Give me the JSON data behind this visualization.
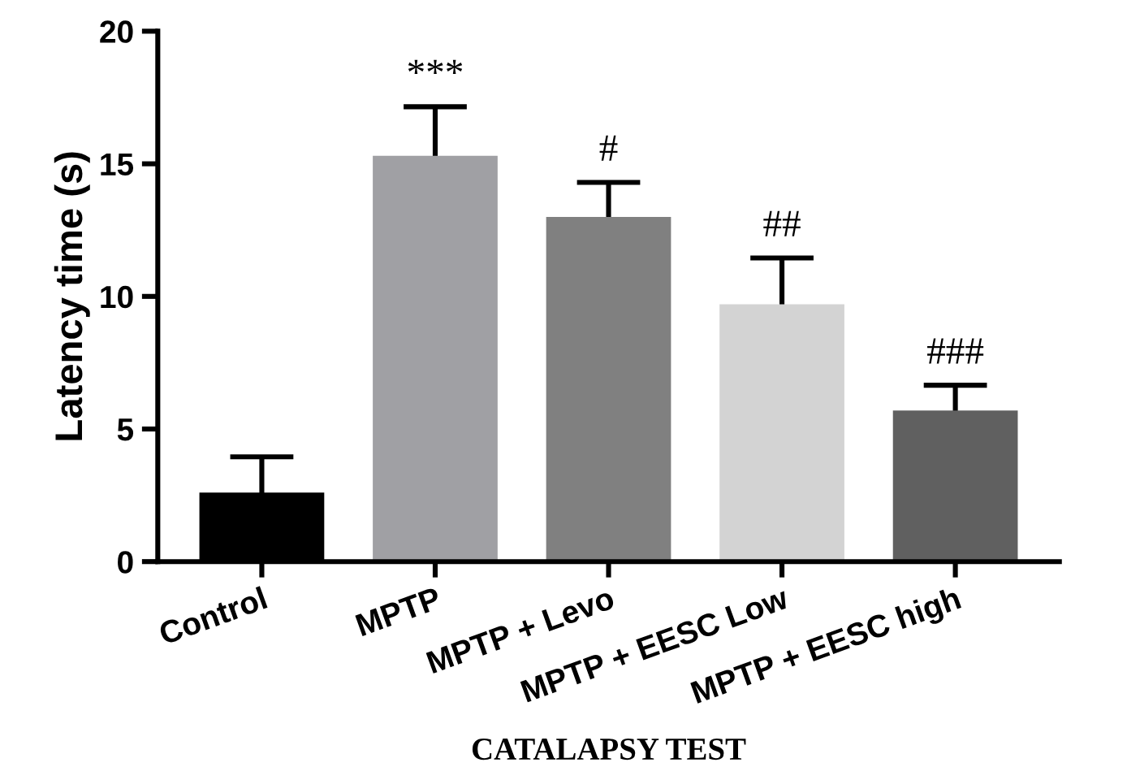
{
  "chart_data": {
    "type": "bar",
    "categories": [
      "Control",
      "MPTP",
      "MPTP + Levo",
      "MPTP + EESC Low",
      "MPTP + EESC high"
    ],
    "values": [
      2.6,
      15.3,
      13.0,
      9.7,
      5.7
    ],
    "errors": [
      1.35,
      1.85,
      1.3,
      1.75,
      0.95
    ],
    "colors": [
      "#000000",
      "#a0a0a4",
      "#808080",
      "#d3d3d3",
      "#606060"
    ],
    "ylabel": "Latency time (s)",
    "xlabel": "CATALAPSY TEST",
    "ylim": [
      0,
      20
    ],
    "yticks": [
      0,
      5,
      10,
      15,
      20
    ],
    "grid": false,
    "annotations": [
      "***",
      "#",
      "##",
      "###"
    ]
  }
}
